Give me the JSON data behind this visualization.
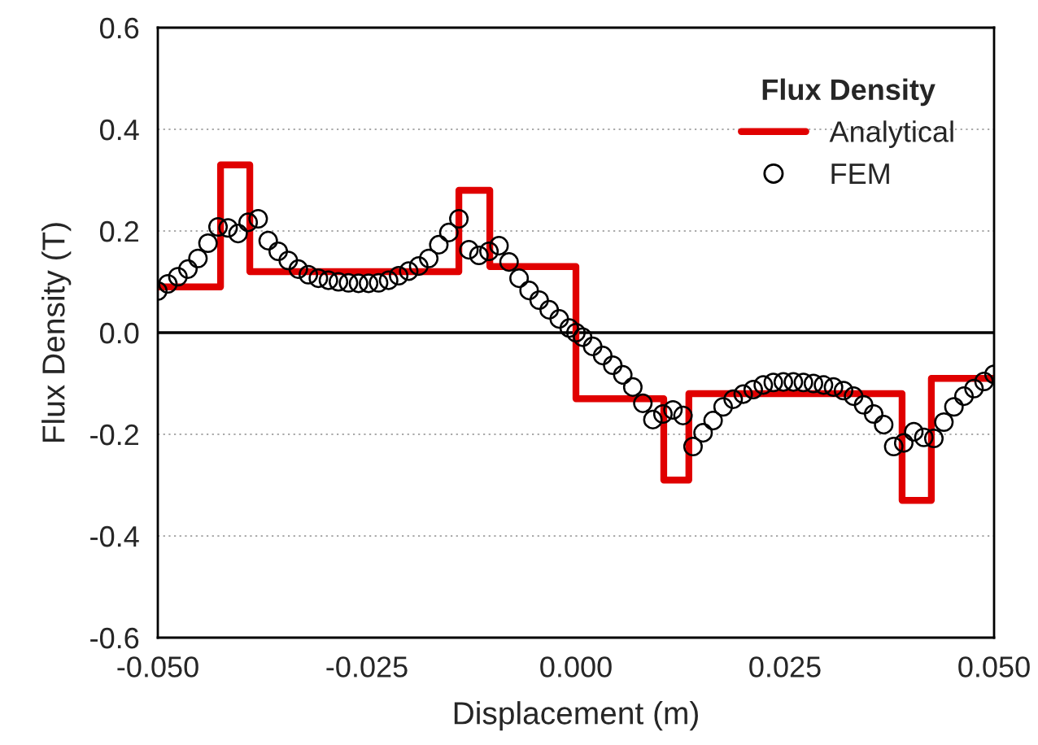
{
  "chart_data": {
    "type": "step",
    "xlabel": "Displacement (m)",
    "ylabel": "Flux Density (T)",
    "legend_title": "Flux Density",
    "legend": "top right",
    "grid": "y",
    "xlim": [
      -0.05,
      0.05
    ],
    "ylim": [
      -0.6,
      0.6
    ],
    "xticks": [
      {
        "value": -0.05,
        "label": "-0.050"
      },
      {
        "value": -0.025,
        "label": "-0.025"
      },
      {
        "value": 0,
        "label": "0.000"
      },
      {
        "value": 0.025,
        "label": "0.025"
      },
      {
        "value": 0.05,
        "label": "0.050"
      }
    ],
    "yticks": [
      {
        "value": -0.6,
        "label": "-0.6"
      },
      {
        "value": -0.4,
        "label": "-0.4"
      },
      {
        "value": -0.2,
        "label": "-0.2"
      },
      {
        "value": 0,
        "label": "0.0"
      },
      {
        "value": 0.2,
        "label": "0.2"
      },
      {
        "value": 0.4,
        "label": "0.4"
      },
      {
        "value": 0.6,
        "label": "0.6"
      }
    ],
    "ref_lines": [
      {
        "axis": "y",
        "value": 0,
        "color": "#000000"
      }
    ],
    "series": [
      {
        "name": "Analytical",
        "color": "#e00000",
        "x": [
          -0.05,
          -0.0425,
          -0.039,
          -0.014,
          -0.0103,
          0.0,
          0.0105,
          0.0135,
          0.039,
          0.0425,
          0.05
        ],
        "values": [
          0.09,
          0.33,
          0.12,
          0.28,
          0.13,
          -0.13,
          -0.29,
          -0.12,
          -0.33,
          -0.09,
          -0.09
        ]
      },
      {
        "name": "FEM",
        "type": "scatter",
        "marker": "circle",
        "color": "#000000",
        "x": [
          -0.05,
          -0.0488,
          -0.0476,
          -0.0464,
          -0.0452,
          -0.044,
          -0.0428,
          -0.0416,
          -0.0404,
          -0.0392,
          -0.038,
          -0.0368,
          -0.0356,
          -0.0344,
          -0.0332,
          -0.032,
          -0.0308,
          -0.0296,
          -0.0284,
          -0.0272,
          -0.026,
          -0.0248,
          -0.0236,
          -0.0224,
          -0.0212,
          -0.02,
          -0.0188,
          -0.0176,
          -0.0164,
          -0.0152,
          -0.014,
          -0.0128,
          -0.0116,
          -0.0104,
          -0.0092,
          -0.008,
          -0.0068,
          -0.0056,
          -0.0044,
          -0.0032,
          -0.002,
          -0.0008,
          0.0,
          0.0008,
          0.002,
          0.0032,
          0.0044,
          0.0056,
          0.0068,
          0.008,
          0.0092,
          0.0104,
          0.0116,
          0.0128,
          0.014,
          0.0152,
          0.0164,
          0.0176,
          0.0188,
          0.02,
          0.0212,
          0.0224,
          0.0236,
          0.0248,
          0.026,
          0.0272,
          0.0284,
          0.0296,
          0.0308,
          0.032,
          0.0332,
          0.0344,
          0.0356,
          0.0368,
          0.038,
          0.0392,
          0.0404,
          0.0416,
          0.0428,
          0.044,
          0.0452,
          0.0464,
          0.0476,
          0.0488,
          0.05
        ],
        "values": [
          0.082,
          0.096,
          0.11,
          0.125,
          0.146,
          0.176,
          0.208,
          0.206,
          0.195,
          0.217,
          0.224,
          0.181,
          0.16,
          0.142,
          0.125,
          0.114,
          0.107,
          0.103,
          0.1,
          0.098,
          0.097,
          0.097,
          0.098,
          0.103,
          0.112,
          0.121,
          0.131,
          0.146,
          0.173,
          0.197,
          0.224,
          0.163,
          0.152,
          0.16,
          0.171,
          0.139,
          0.107,
          0.083,
          0.064,
          0.045,
          0.027,
          0.009,
          0.0,
          -0.009,
          -0.027,
          -0.045,
          -0.064,
          -0.083,
          -0.107,
          -0.139,
          -0.171,
          -0.16,
          -0.152,
          -0.163,
          -0.224,
          -0.197,
          -0.173,
          -0.146,
          -0.131,
          -0.121,
          -0.112,
          -0.103,
          -0.098,
          -0.097,
          -0.097,
          -0.098,
          -0.1,
          -0.103,
          -0.107,
          -0.114,
          -0.125,
          -0.142,
          -0.16,
          -0.181,
          -0.224,
          -0.217,
          -0.195,
          -0.206,
          -0.208,
          -0.176,
          -0.146,
          -0.125,
          -0.11,
          -0.096,
          -0.082
        ]
      }
    ]
  }
}
